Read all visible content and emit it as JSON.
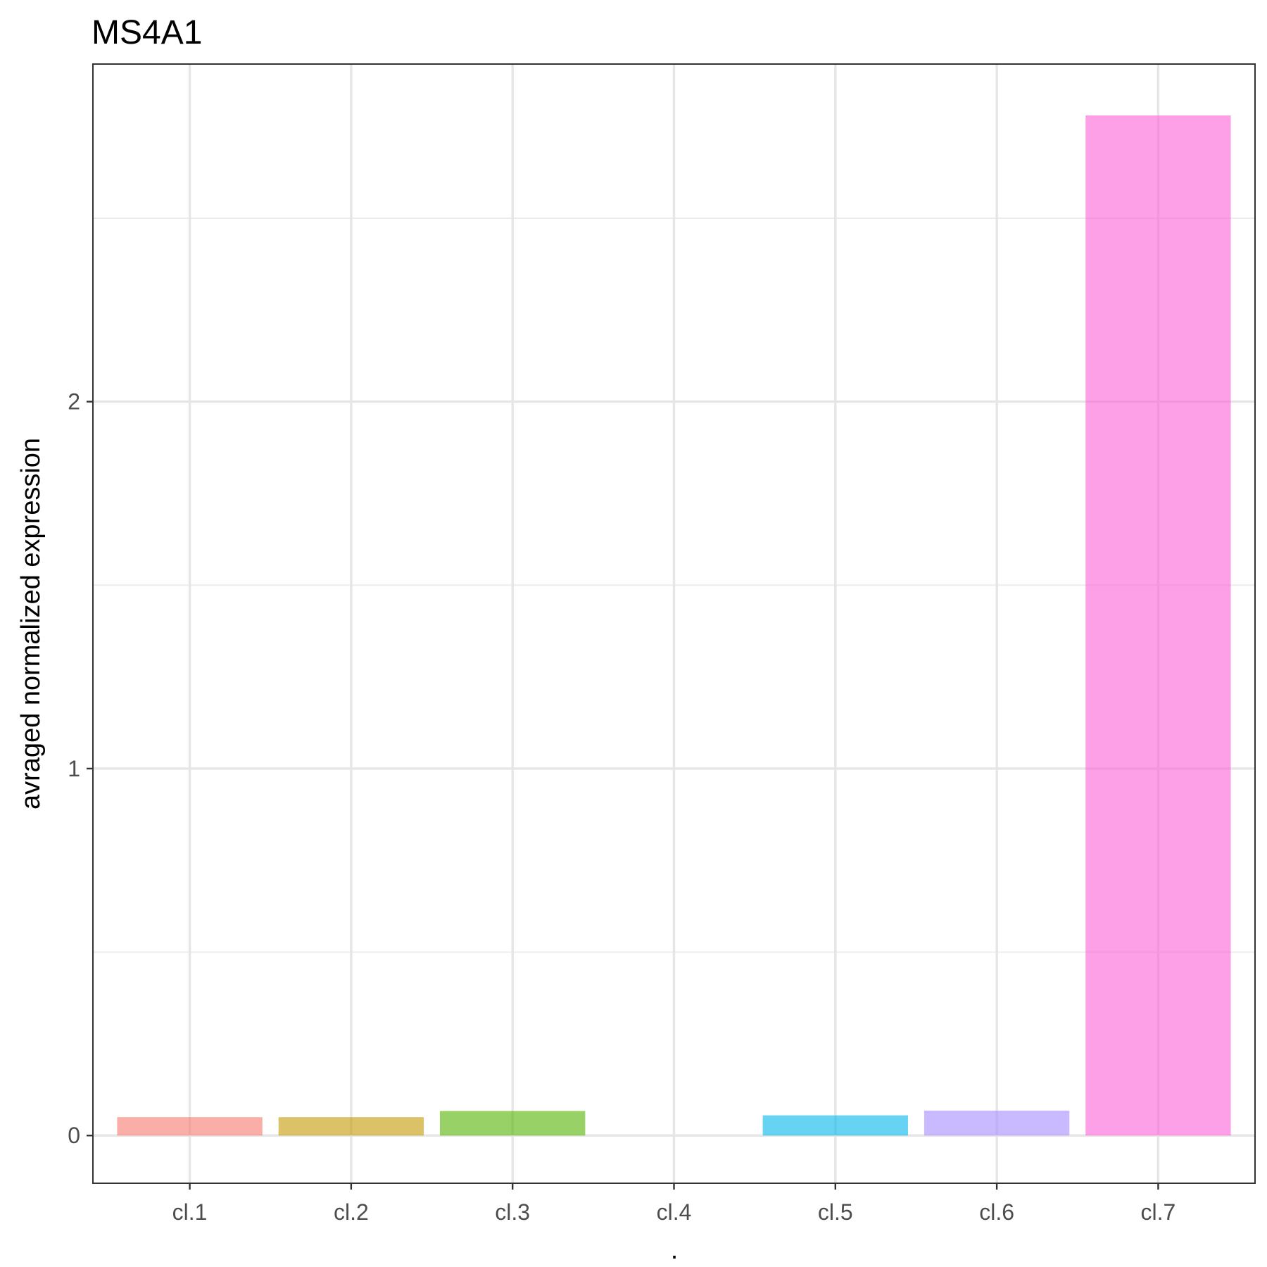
{
  "chart_data": {
    "type": "bar",
    "title": "MS4A1",
    "xlabel": ".",
    "ylabel": "avraged normalized expression",
    "categories": [
      "cl.1",
      "cl.2",
      "cl.3",
      "cl.4",
      "cl.5",
      "cl.6",
      "cl.7"
    ],
    "values": [
      0.05,
      0.05,
      0.067,
      0.0,
      0.055,
      0.068,
      2.78
    ],
    "colors": [
      "#F8766D",
      "#C49A00",
      "#53B400",
      "#00C094",
      "#00B6EB",
      "#A58AFF",
      "#FB61D7"
    ],
    "bar_opacity": 0.6,
    "ylim": [
      -0.13,
      2.92
    ],
    "yticks": [
      0,
      1,
      2
    ],
    "ytick_labels": [
      "0",
      "1",
      "2"
    ],
    "grid": true,
    "legend": "none"
  }
}
